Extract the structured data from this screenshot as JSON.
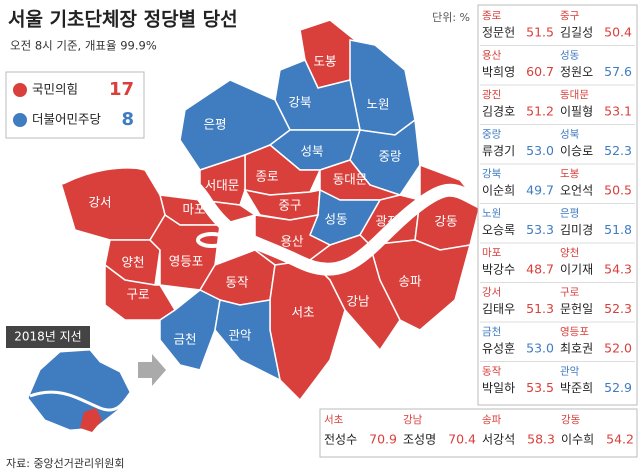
{
  "header": {
    "title": "서울 기초단체장 정당별 당선",
    "subtitle": "오전 8시 기준, 개표율 99.9%",
    "unit": "단위: %"
  },
  "legend": [
    {
      "label": "국민의힘",
      "count": "17",
      "color": "#d9403c"
    },
    {
      "label": "더불어민주당",
      "count": "8",
      "color": "#3f7cc0"
    }
  ],
  "districts": [
    {
      "name": "도봉",
      "color": "#d9403c"
    },
    {
      "name": "노원",
      "color": "#3f7cc0"
    },
    {
      "name": "강북",
      "color": "#3f7cc0"
    },
    {
      "name": "은평",
      "color": "#3f7cc0"
    },
    {
      "name": "성북",
      "color": "#3f7cc0"
    },
    {
      "name": "중랑",
      "color": "#3f7cc0"
    },
    {
      "name": "종로",
      "color": "#d9403c"
    },
    {
      "name": "서대문",
      "color": "#d9403c"
    },
    {
      "name": "동대문",
      "color": "#d9403c"
    },
    {
      "name": "마포",
      "color": "#d9403c"
    },
    {
      "name": "중구",
      "color": "#d9403c"
    },
    {
      "name": "성동",
      "color": "#3f7cc0"
    },
    {
      "name": "광진",
      "color": "#d9403c"
    },
    {
      "name": "강동",
      "color": "#d9403c"
    },
    {
      "name": "용산",
      "color": "#d9403c"
    },
    {
      "name": "강서",
      "color": "#d9403c"
    },
    {
      "name": "양천",
      "color": "#d9403c"
    },
    {
      "name": "영등포",
      "color": "#d9403c"
    },
    {
      "name": "구로",
      "color": "#d9403c"
    },
    {
      "name": "동작",
      "color": "#d9403c"
    },
    {
      "name": "서초",
      "color": "#d9403c"
    },
    {
      "name": "강남",
      "color": "#d9403c"
    },
    {
      "name": "송파",
      "color": "#d9403c"
    },
    {
      "name": "금천",
      "color": "#3f7cc0"
    },
    {
      "name": "관악",
      "color": "#3f7cc0"
    }
  ],
  "results": [
    {
      "district": "종로",
      "winner": "정문헌",
      "value": "51.5",
      "color": "#d9403c"
    },
    {
      "district": "중구",
      "winner": "김길성",
      "value": "50.4",
      "color": "#d9403c"
    },
    {
      "district": "용산",
      "winner": "박희영",
      "value": "60.7",
      "color": "#d9403c"
    },
    {
      "district": "성동",
      "winner": "정원오",
      "value": "57.6",
      "color": "#3f7cc0"
    },
    {
      "district": "광진",
      "winner": "김경호",
      "value": "51.2",
      "color": "#d9403c"
    },
    {
      "district": "동대문",
      "winner": "이필형",
      "value": "53.1",
      "color": "#d9403c"
    },
    {
      "district": "중랑",
      "winner": "류경기",
      "value": "53.0",
      "color": "#3f7cc0"
    },
    {
      "district": "성북",
      "winner": "이승로",
      "value": "52.3",
      "color": "#3f7cc0"
    },
    {
      "district": "강북",
      "winner": "이순희",
      "value": "49.7",
      "color": "#3f7cc0"
    },
    {
      "district": "도봉",
      "winner": "오언석",
      "value": "50.5",
      "color": "#d9403c"
    },
    {
      "district": "노원",
      "winner": "오승록",
      "value": "53.3",
      "color": "#3f7cc0"
    },
    {
      "district": "은평",
      "winner": "김미경",
      "value": "51.8",
      "color": "#3f7cc0"
    },
    {
      "district": "마포",
      "winner": "박강수",
      "value": "48.7",
      "color": "#d9403c"
    },
    {
      "district": "양천",
      "winner": "이기재",
      "value": "54.3",
      "color": "#d9403c"
    },
    {
      "district": "강서",
      "winner": "김태우",
      "value": "51.3",
      "color": "#d9403c"
    },
    {
      "district": "구로",
      "winner": "문헌일",
      "value": "52.3",
      "color": "#d9403c"
    },
    {
      "district": "금천",
      "winner": "유성훈",
      "value": "53.0",
      "color": "#3f7cc0"
    },
    {
      "district": "영등포",
      "winner": "최호권",
      "value": "52.0",
      "color": "#d9403c"
    },
    {
      "district": "동작",
      "winner": "박일하",
      "value": "53.5",
      "color": "#d9403c"
    },
    {
      "district": "관악",
      "winner": "박준희",
      "value": "52.9",
      "color": "#3f7cc0"
    }
  ],
  "results_bottom": [
    {
      "district": "서초",
      "winner": "전성수",
      "value": "70.9",
      "color": "#d9403c"
    },
    {
      "district": "강남",
      "winner": "조성명",
      "value": "70.4",
      "color": "#d9403c"
    },
    {
      "district": "송파",
      "winner": "서강석",
      "value": "58.3",
      "color": "#d9403c"
    },
    {
      "district": "강동",
      "winner": "이수희",
      "value": "54.2",
      "color": "#d9403c"
    }
  ],
  "inset_label": "2018년 지선",
  "source": "자료: 중앙선거관리위원회"
}
